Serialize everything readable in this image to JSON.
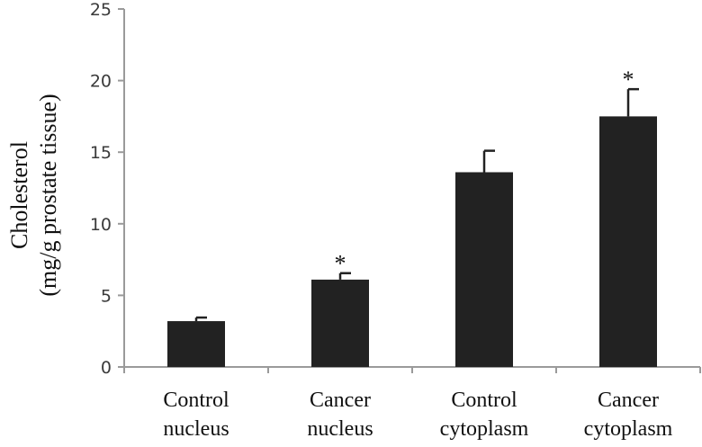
{
  "chart_data": {
    "type": "bar",
    "title": "",
    "ylabel_lines": [
      "Cholesterol",
      "(mg/g prostate tissue)"
    ],
    "xlabel": "",
    "ylim": [
      0,
      25
    ],
    "yticks": [
      0,
      5,
      10,
      15,
      20,
      25
    ],
    "grid": false,
    "categories": [
      [
        "Control",
        "nucleus"
      ],
      [
        "Cancer",
        "nucleus"
      ],
      [
        "Control",
        "cytoplasm"
      ],
      [
        "Cancer",
        "cytoplasm"
      ]
    ],
    "values": [
      3.2,
      6.1,
      13.6,
      17.5
    ],
    "errors": [
      0.25,
      0.45,
      1.5,
      1.9
    ],
    "significance": [
      "",
      "*",
      "",
      "*"
    ],
    "bar_color": "#222222"
  }
}
